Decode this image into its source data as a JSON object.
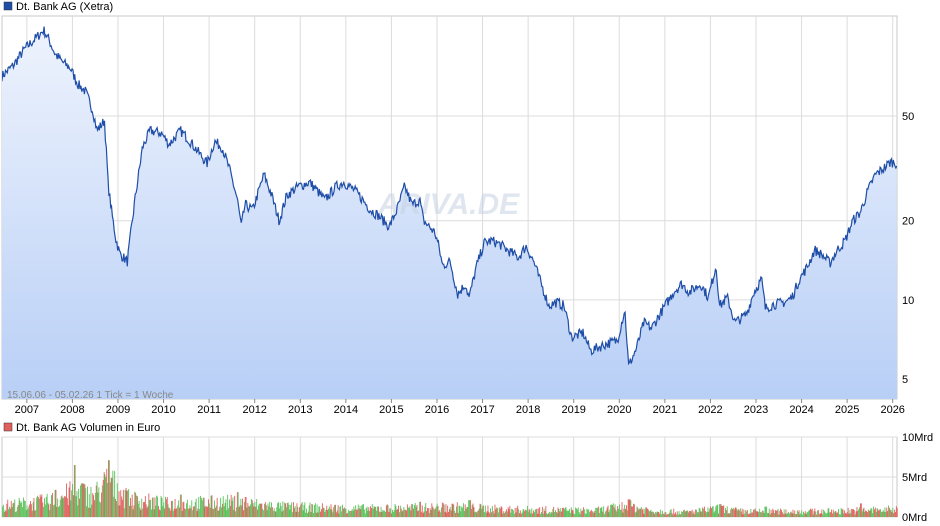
{
  "chart_data": [
    {
      "type": "line",
      "title": "Dt. Bank AG (Xetra)",
      "scale": "log",
      "ylim": [
        4.2,
        120
      ],
      "y_ticks": [
        {
          "label": "50",
          "value": 50
        },
        {
          "label": "20",
          "value": 20
        },
        {
          "label": "10",
          "value": 10
        },
        {
          "label": "5",
          "value": 5
        }
      ],
      "x_ticks": [
        "2007",
        "2008",
        "2009",
        "2010",
        "2011",
        "2012",
        "2013",
        "2014",
        "2015",
        "2016",
        "2017",
        "2018",
        "2019",
        "2020",
        "2021",
        "2022",
        "2023",
        "2024",
        "2025",
        "2026"
      ],
      "x_range": [
        "2006-06-15",
        "2026-02-05"
      ],
      "footer": "15.06.06 - 05.02.26   1 Tick = 1 Woche",
      "watermark": "ARIVA.DE",
      "colors": {
        "line": "#1f4ea8",
        "fill_top": "#eef3fd",
        "fill_bottom": "#b8cff6",
        "legend_box": "#1f4ea8"
      },
      "grid": true,
      "series": [
        {
          "name": "Dt. Bank AG (Xetra)",
          "points": [
            [
              "2006-06",
              71
            ],
            [
              "2006-09",
              78
            ],
            [
              "2006-12",
              90
            ],
            [
              "2007-02",
              96
            ],
            [
              "2007-05",
              106
            ],
            [
              "2007-06",
              100
            ],
            [
              "2007-08",
              86
            ],
            [
              "2007-10",
              80
            ],
            [
              "2007-12",
              76
            ],
            [
              "2008-02",
              66
            ],
            [
              "2008-04",
              62
            ],
            [
              "2008-06",
              52
            ],
            [
              "2008-07",
              44
            ],
            [
              "2008-09",
              48
            ],
            [
              "2008-10",
              27
            ],
            [
              "2008-11",
              21
            ],
            [
              "2008-12",
              17
            ],
            [
              "2009-01",
              15
            ],
            [
              "2009-03",
              14
            ],
            [
              "2009-05",
              24
            ],
            [
              "2009-07",
              38
            ],
            [
              "2009-09",
              44
            ],
            [
              "2009-12",
              43
            ],
            [
              "2010-02",
              39
            ],
            [
              "2010-05",
              44
            ],
            [
              "2010-07",
              41
            ],
            [
              "2010-10",
              36
            ],
            [
              "2010-12",
              33
            ],
            [
              "2011-02",
              40
            ],
            [
              "2011-04",
              38
            ],
            [
              "2011-06",
              31
            ],
            [
              "2011-08",
              24
            ],
            [
              "2011-09",
              19
            ],
            [
              "2011-10",
              23
            ],
            [
              "2011-12",
              22
            ],
            [
              "2012-03",
              30
            ],
            [
              "2012-05",
              25
            ],
            [
              "2012-07",
              20
            ],
            [
              "2012-09",
              25
            ],
            [
              "2012-12",
              27
            ],
            [
              "2013-03",
              28
            ],
            [
              "2013-05",
              26
            ],
            [
              "2013-07",
              24
            ],
            [
              "2013-10",
              27
            ],
            [
              "2013-12",
              28
            ],
            [
              "2014-03",
              26
            ],
            [
              "2014-05",
              24
            ],
            [
              "2014-07",
              22
            ],
            [
              "2014-09",
              21
            ],
            [
              "2014-12",
              19
            ],
            [
              "2015-02",
              22
            ],
            [
              "2015-04",
              27
            ],
            [
              "2015-06",
              23
            ],
            [
              "2015-08",
              24
            ],
            [
              "2015-09",
              20
            ],
            [
              "2015-12",
              18
            ],
            [
              "2016-01",
              16
            ],
            [
              "2016-02",
              13.5
            ],
            [
              "2016-04",
              14
            ],
            [
              "2016-06",
              10.5
            ],
            [
              "2016-08",
              11.5
            ],
            [
              "2016-09",
              10.2
            ],
            [
              "2016-11",
              13.5
            ],
            [
              "2017-01",
              16.5
            ],
            [
              "2017-03",
              16.8
            ],
            [
              "2017-05",
              16.3
            ],
            [
              "2017-07",
              15.5
            ],
            [
              "2017-10",
              14.5
            ],
            [
              "2017-12",
              16
            ],
            [
              "2018-02",
              14
            ],
            [
              "2018-04",
              11.5
            ],
            [
              "2018-06",
              9.5
            ],
            [
              "2018-08",
              9.8
            ],
            [
              "2018-10",
              9.5
            ],
            [
              "2018-12",
              7.2
            ],
            [
              "2019-03",
              7.5
            ],
            [
              "2019-05",
              6.4
            ],
            [
              "2019-07",
              6.6
            ],
            [
              "2019-09",
              6.8
            ],
            [
              "2019-12",
              7.0
            ],
            [
              "2020-02",
              9.2
            ],
            [
              "2020-03",
              5.6
            ],
            [
              "2020-05",
              6.5
            ],
            [
              "2020-07",
              8.2
            ],
            [
              "2020-09",
              7.8
            ],
            [
              "2020-12",
              9.2
            ],
            [
              "2021-03",
              10.8
            ],
            [
              "2021-05",
              11.5
            ],
            [
              "2021-07",
              10.7
            ],
            [
              "2021-10",
              11.5
            ],
            [
              "2021-12",
              10.2
            ],
            [
              "2022-02",
              13.5
            ],
            [
              "2022-03",
              9.5
            ],
            [
              "2022-05",
              10.2
            ],
            [
              "2022-07",
              8.2
            ],
            [
              "2022-10",
              8.8
            ],
            [
              "2022-12",
              10.7
            ],
            [
              "2023-02",
              12.0
            ],
            [
              "2023-03",
              9.3
            ],
            [
              "2023-05",
              9.6
            ],
            [
              "2023-08",
              9.8
            ],
            [
              "2023-10",
              10.2
            ],
            [
              "2023-12",
              12.0
            ],
            [
              "2024-02",
              13.3
            ],
            [
              "2024-04",
              15.5
            ],
            [
              "2024-06",
              14.8
            ],
            [
              "2024-08",
              13.8
            ],
            [
              "2024-10",
              15.5
            ],
            [
              "2024-12",
              16.8
            ],
            [
              "2025-02",
              20.0
            ],
            [
              "2025-04",
              21.5
            ],
            [
              "2025-06",
              26.0
            ],
            [
              "2025-08",
              30.0
            ],
            [
              "2025-10",
              31.5
            ],
            [
              "2025-12",
              33.5
            ],
            [
              "2026-02",
              33.0
            ]
          ]
        }
      ]
    },
    {
      "type": "bar",
      "title": "Dt. Bank AG Volumen in Euro",
      "ylim": [
        0,
        10
      ],
      "y_ticks": [
        {
          "label": "10Mrd",
          "value": 10
        },
        {
          "label": "5Mrd",
          "value": 5
        },
        {
          "label": "0Mrd",
          "value": 0
        }
      ],
      "x_range": [
        "2006-06-15",
        "2026-02-05"
      ],
      "colors": {
        "up": "#5cc15c",
        "down": "#e0605e",
        "legend_box": "#e0605e"
      },
      "grid": true,
      "series": [
        {
          "name": "Dt. Bank AG Volumen in Euro",
          "level_points": [
            [
              "2006-06",
              1.6
            ],
            [
              "2007-06",
              2.2
            ],
            [
              "2008-01",
              3.6
            ],
            [
              "2008-06",
              3.0
            ],
            [
              "2008-10",
              5.2
            ],
            [
              "2009-03",
              2.6
            ],
            [
              "2010-01",
              1.9
            ],
            [
              "2011-06",
              2.1
            ],
            [
              "2012-06",
              1.5
            ],
            [
              "2013-06",
              1.3
            ],
            [
              "2014-06",
              1.2
            ],
            [
              "2015-06",
              1.3
            ],
            [
              "2016-06",
              1.4
            ],
            [
              "2017-06",
              1.1
            ],
            [
              "2018-06",
              1.0
            ],
            [
              "2019-06",
              0.9
            ],
            [
              "2020-03",
              1.6
            ],
            [
              "2020-09",
              0.9
            ],
            [
              "2021-06",
              0.7
            ],
            [
              "2022-03",
              1.2
            ],
            [
              "2022-09",
              0.8
            ],
            [
              "2023-06",
              0.8
            ],
            [
              "2024-06",
              0.8
            ],
            [
              "2025-06",
              1.0
            ],
            [
              "2026-02",
              1.1
            ]
          ],
          "spikes": [
            [
              "2007-08",
              3.4
            ],
            [
              "2008-01",
              6.5
            ],
            [
              "2008-03",
              4.2
            ],
            [
              "2008-10",
              7.1
            ],
            [
              "2008-11",
              4.9
            ],
            [
              "2009-03",
              3.3
            ],
            [
              "2010-05",
              2.8
            ],
            [
              "2011-08",
              3.1
            ],
            [
              "2011-10",
              2.5
            ],
            [
              "2015-08",
              1.9
            ],
            [
              "2016-09",
              2.1
            ],
            [
              "2020-03",
              2.2
            ],
            [
              "2022-03",
              1.6
            ],
            [
              "2023-03",
              1.3
            ],
            [
              "2025-04",
              1.7
            ]
          ]
        }
      ]
    }
  ]
}
